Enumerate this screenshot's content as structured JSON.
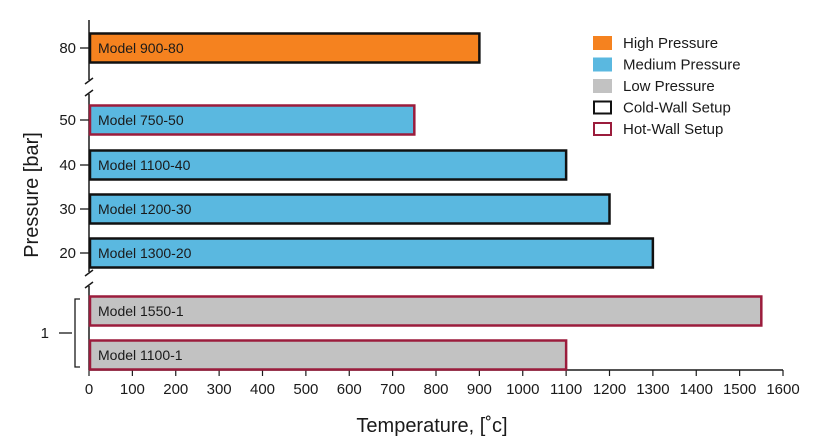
{
  "chart_data": {
    "type": "bar",
    "orientation": "horizontal",
    "xlabel": "Temperature, [˚c]",
    "ylabel": "Pressure [bar]",
    "xlim": [
      0,
      1600
    ],
    "xticks": [
      0,
      100,
      200,
      300,
      400,
      500,
      600,
      700,
      800,
      900,
      1000,
      1100,
      1200,
      1300,
      1400,
      1500,
      1600
    ],
    "yticks": [
      "80",
      "50",
      "40",
      "30",
      "20",
      "1"
    ],
    "grid": false,
    "legend_position": "top-right",
    "colors": {
      "high_pressure": "#f5821f",
      "medium_pressure": "#5ab8e0",
      "low_pressure": "#c2c2c2",
      "cold_wall": "#111111",
      "hot_wall": "#9b1c3c"
    },
    "bars": [
      {
        "label": "Model 900-80",
        "pressure": "80",
        "temperature": 900,
        "category": "High Pressure",
        "setup": "Cold-Wall Setup"
      },
      {
        "label": "Model 750-50",
        "pressure": "50",
        "temperature": 750,
        "category": "Medium Pressure",
        "setup": "Hot-Wall Setup"
      },
      {
        "label": "Model 1100-40",
        "pressure": "40",
        "temperature": 1100,
        "category": "Medium Pressure",
        "setup": "Cold-Wall Setup"
      },
      {
        "label": "Model 1200-30",
        "pressure": "30",
        "temperature": 1200,
        "category": "Medium Pressure",
        "setup": "Cold-Wall Setup"
      },
      {
        "label": "Model 1300-20",
        "pressure": "20",
        "temperature": 1300,
        "category": "Medium Pressure",
        "setup": "Cold-Wall Setup"
      },
      {
        "label": "Model 1550-1",
        "pressure": "1",
        "temperature": 1550,
        "category": "Low Pressure",
        "setup": "Hot-Wall Setup"
      },
      {
        "label": "Model 1100-1",
        "pressure": "1",
        "temperature": 1100,
        "category": "Low Pressure",
        "setup": "Hot-Wall Setup"
      }
    ],
    "legend": [
      {
        "label": "High Pressure",
        "kind": "fill",
        "color": "#f5821f"
      },
      {
        "label": "Medium Pressure",
        "kind": "fill",
        "color": "#5ab8e0"
      },
      {
        "label": "Low Pressure",
        "kind": "fill",
        "color": "#c2c2c2"
      },
      {
        "label": "Cold-Wall Setup",
        "kind": "outline",
        "color": "#111111"
      },
      {
        "label": "Hot-Wall Setup",
        "kind": "outline",
        "color": "#9b1c3c"
      }
    ]
  }
}
